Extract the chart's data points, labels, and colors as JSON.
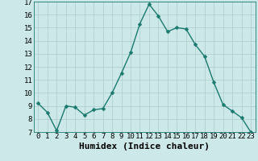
{
  "x": [
    0,
    1,
    2,
    3,
    4,
    5,
    6,
    7,
    8,
    9,
    10,
    11,
    12,
    13,
    14,
    15,
    16,
    17,
    18,
    19,
    20,
    21,
    22,
    23
  ],
  "y": [
    9.2,
    8.5,
    7.1,
    9.0,
    8.9,
    8.3,
    8.7,
    8.8,
    10.0,
    11.5,
    13.1,
    15.3,
    16.8,
    15.9,
    14.7,
    15.0,
    14.9,
    13.7,
    12.8,
    10.8,
    9.1,
    8.6,
    8.1,
    7.0
  ],
  "xlabel": "Humidex (Indice chaleur)",
  "ylim": [
    7,
    17
  ],
  "yticks": [
    7,
    8,
    9,
    10,
    11,
    12,
    13,
    14,
    15,
    16,
    17
  ],
  "xticks": [
    0,
    1,
    2,
    3,
    4,
    5,
    6,
    7,
    8,
    9,
    10,
    11,
    12,
    13,
    14,
    15,
    16,
    17,
    18,
    19,
    20,
    21,
    22,
    23
  ],
  "line_color": "#1a7a6e",
  "marker_color": "#1a7a6e",
  "bg_color": "#cce8e8",
  "grid_color": "#aacccc",
  "xlabel_fontsize": 8,
  "tick_fontsize": 6.5,
  "linewidth": 1.0,
  "markersize": 2.5
}
